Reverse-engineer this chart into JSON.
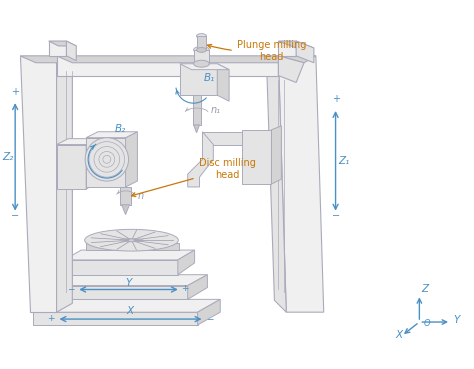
{
  "bg_color": "#ffffff",
  "lc": "#aaaabc",
  "lc2": "#999aaa",
  "fc_light": "#f0f0f0",
  "fc_mid": "#e4e4e4",
  "fc_dark": "#d4d4d4",
  "fc_darker": "#c8c8c8",
  "blue": "#4a90c4",
  "orange": "#c8780a",
  "figsize": [
    4.74,
    3.69
  ],
  "dpi": 100,
  "labels": {
    "Z2": "Z₂",
    "Z1": "Z₁",
    "B2": "B₂",
    "B1": "B₁",
    "n1": "n₁",
    "n": "n",
    "X": "X",
    "Y": "Y",
    "Z": "Z",
    "O": "O",
    "plunge": "Plunge milling\nhead",
    "disc": "Disc milling\nhead"
  }
}
